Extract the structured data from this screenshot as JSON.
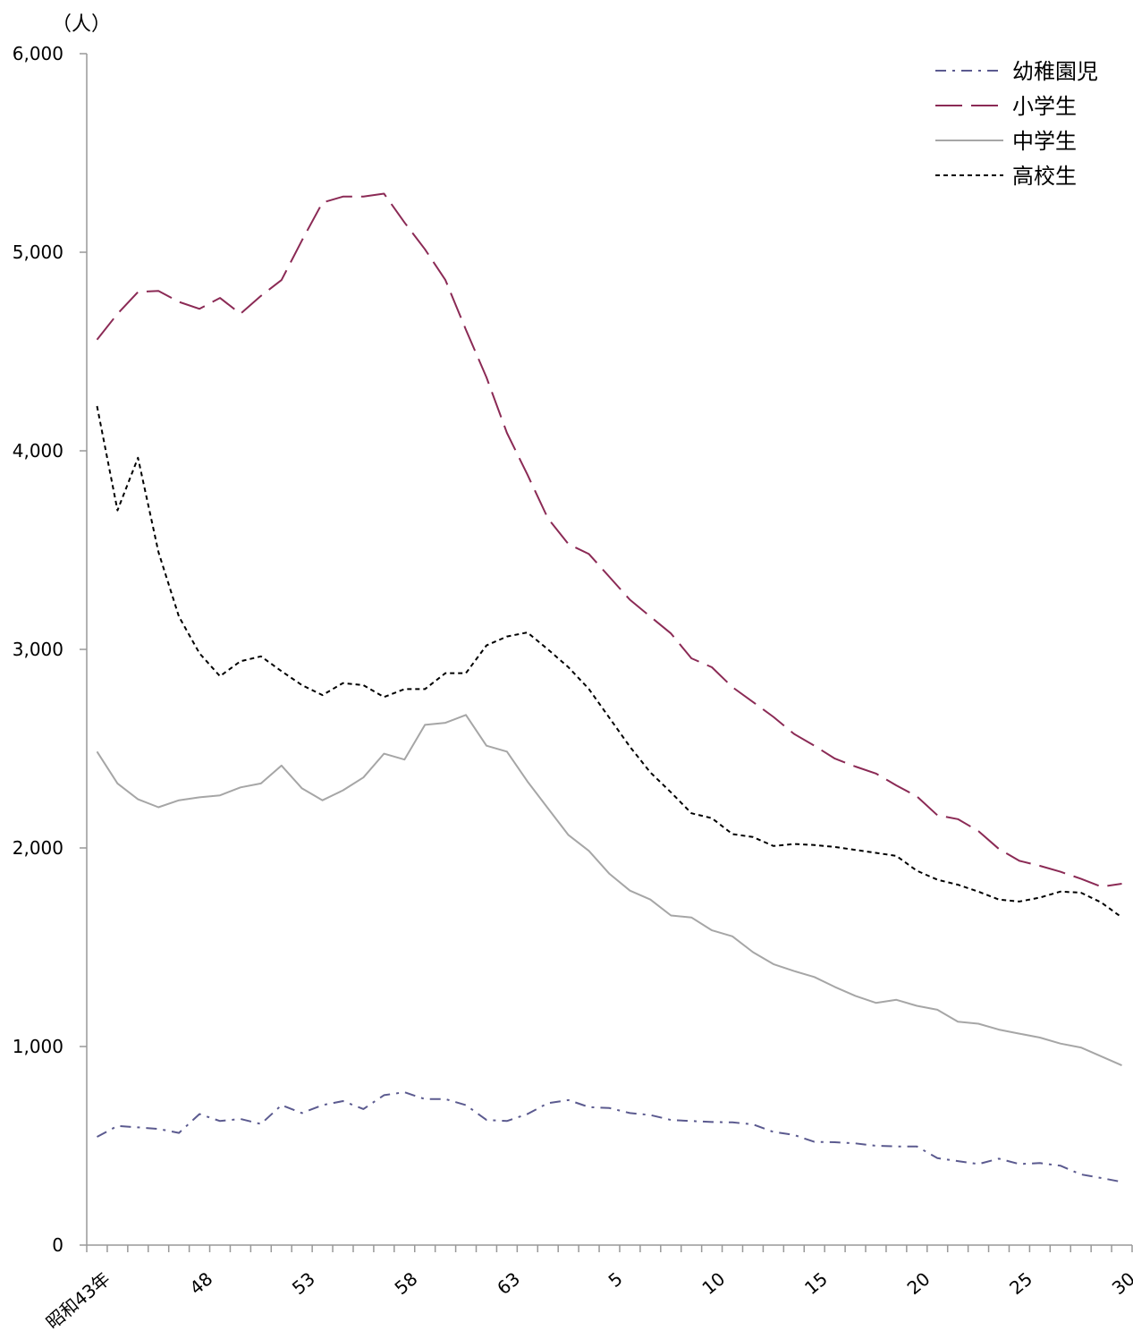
{
  "chart_data": {
    "type": "line",
    "unit_label": "（人）",
    "x_tick_labels": [
      {
        "index": 0,
        "label": "昭和43年"
      },
      {
        "index": 5,
        "label": "48"
      },
      {
        "index": 10,
        "label": "53"
      },
      {
        "index": 15,
        "label": "58"
      },
      {
        "index": 20,
        "label": "63"
      },
      {
        "index": 25,
        "label": "5"
      },
      {
        "index": 30,
        "label": "10"
      },
      {
        "index": 35,
        "label": "15"
      },
      {
        "index": 40,
        "label": "20"
      },
      {
        "index": 45,
        "label": "25"
      },
      {
        "index": 50,
        "label": "30"
      }
    ],
    "n_points": 51,
    "ylim": [
      0,
      6000
    ],
    "y_ticks": [
      {
        "value": 0,
        "label": "0"
      },
      {
        "value": 1000,
        "label": "1,000"
      },
      {
        "value": 2000,
        "label": "2,000"
      },
      {
        "value": 3000,
        "label": "3,000"
      },
      {
        "value": 4000,
        "label": "4,000"
      },
      {
        "value": 5000,
        "label": "5,000"
      },
      {
        "value": 6000,
        "label": "6,000"
      }
    ],
    "grid": false,
    "legend_position": "top-right",
    "series": [
      {
        "name": "幼稚園児",
        "color": "#5b5a8f",
        "dash": "dashdot",
        "values": [
          545,
          600,
          593,
          585,
          565,
          660,
          625,
          635,
          610,
          705,
          665,
          705,
          725,
          685,
          755,
          770,
          735,
          735,
          705,
          630,
          625,
          660,
          715,
          730,
          695,
          690,
          665,
          655,
          630,
          625,
          620,
          618,
          608,
          570,
          555,
          520,
          518,
          512,
          500,
          497,
          497,
          438,
          423,
          408,
          435,
          408,
          413,
          400,
          356,
          338,
          318
        ]
      },
      {
        "name": "小学生",
        "color": "#8b2a55",
        "dash": "longdash",
        "values": [
          4560,
          4690,
          4800,
          4805,
          4750,
          4715,
          4770,
          4690,
          4780,
          4860,
          5060,
          5250,
          5280,
          5280,
          5295,
          5150,
          5015,
          4860,
          4610,
          4370,
          4090,
          3880,
          3660,
          3530,
          3480,
          3365,
          3250,
          3165,
          3080,
          2955,
          2910,
          2810,
          2735,
          2660,
          2575,
          2515,
          2450,
          2410,
          2375,
          2315,
          2260,
          2165,
          2145,
          2085,
          1995,
          1935,
          1910,
          1880,
          1845,
          1805,
          1820
        ]
      },
      {
        "name": "中学生",
        "color": "#a6a6a6",
        "dash": "solid",
        "values": [
          2485,
          2325,
          2245,
          2205,
          2240,
          2255,
          2265,
          2305,
          2325,
          2415,
          2300,
          2240,
          2290,
          2355,
          2475,
          2445,
          2620,
          2630,
          2670,
          2515,
          2485,
          2335,
          2200,
          2065,
          1985,
          1870,
          1785,
          1740,
          1660,
          1650,
          1585,
          1555,
          1475,
          1415,
          1380,
          1350,
          1300,
          1255,
          1220,
          1235,
          1205,
          1185,
          1125,
          1115,
          1085,
          1065,
          1045,
          1015,
          995,
          950,
          905
        ]
      },
      {
        "name": "高校生",
        "color": "#000000",
        "dash": "dotted",
        "values": [
          4225,
          3700,
          3965,
          3490,
          3165,
          2980,
          2865,
          2940,
          2965,
          2890,
          2820,
          2770,
          2830,
          2820,
          2760,
          2800,
          2800,
          2880,
          2880,
          3020,
          3065,
          3085,
          3000,
          2910,
          2800,
          2655,
          2510,
          2380,
          2280,
          2175,
          2150,
          2070,
          2055,
          2010,
          2020,
          2015,
          2005,
          1990,
          1975,
          1960,
          1885,
          1840,
          1815,
          1780,
          1740,
          1730,
          1750,
          1780,
          1775,
          1725,
          1650
        ]
      }
    ]
  }
}
